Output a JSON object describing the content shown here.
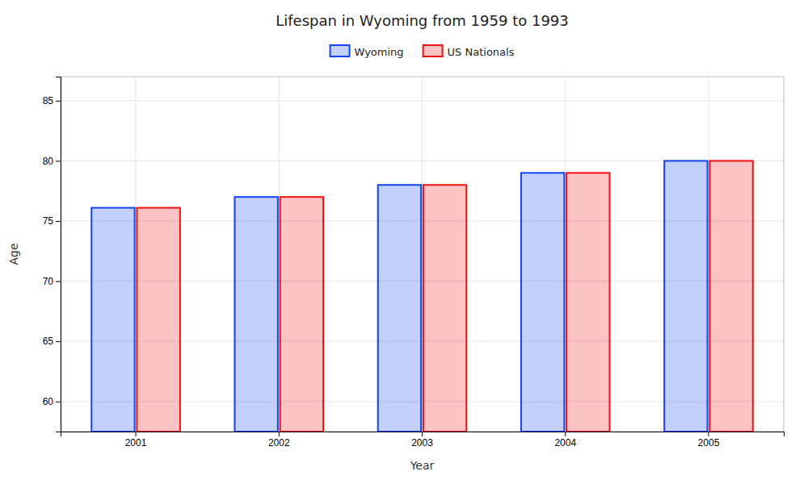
{
  "chart_data": {
    "type": "bar",
    "title": "Lifespan in Wyoming from 1959 to 1993",
    "xlabel": "Year",
    "ylabel": "Age",
    "categories": [
      "2001",
      "2002",
      "2003",
      "2004",
      "2005"
    ],
    "series": [
      {
        "name": "Wyoming",
        "color": "#1144ee",
        "values": [
          76.1,
          77.0,
          78.0,
          79.0,
          80.0
        ]
      },
      {
        "name": "US Nationals",
        "color": "#ee1111",
        "values": [
          76.1,
          77.0,
          78.0,
          79.0,
          80.0
        ]
      }
    ],
    "ylim": [
      57.5,
      87
    ],
    "yticks": [
      60,
      65,
      70,
      75,
      80,
      85
    ],
    "grid": true,
    "legend": "top"
  }
}
